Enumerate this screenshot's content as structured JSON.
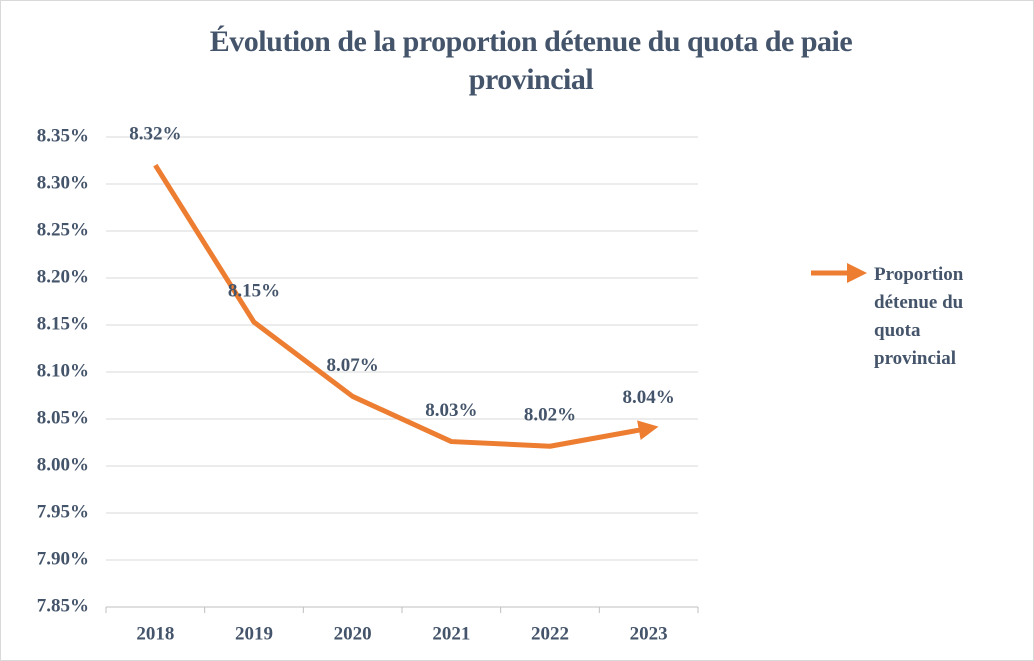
{
  "chart_data": {
    "type": "line",
    "title": "Évolution de la proportion détenue du quota de paie provincial",
    "categories": [
      "2018",
      "2019",
      "2020",
      "2021",
      "2022",
      "2023"
    ],
    "series": [
      {
        "name": "Proportion détenue du quota provincial",
        "color": "#ed7d31",
        "values": [
          8.32,
          8.153,
          8.074,
          8.026,
          8.021,
          8.04
        ],
        "value_labels": [
          "8.32%",
          "8.15%",
          "8.07%",
          "8.03%",
          "8.02%",
          "8.04%"
        ]
      }
    ],
    "ylim": [
      7.85,
      8.35
    ],
    "yticks": [
      {
        "value": 7.85,
        "label": "7.85%"
      },
      {
        "value": 7.9,
        "label": "7.90%"
      },
      {
        "value": 7.95,
        "label": "7.95%"
      },
      {
        "value": 8.0,
        "label": "8.00%"
      },
      {
        "value": 8.05,
        "label": "8.05%"
      },
      {
        "value": 8.1,
        "label": "8.10%"
      },
      {
        "value": 8.15,
        "label": "8.15%"
      },
      {
        "value": 8.2,
        "label": "8.20%"
      },
      {
        "value": 8.25,
        "label": "8.25%"
      },
      {
        "value": 8.3,
        "label": "8.30%"
      },
      {
        "value": 8.35,
        "label": "8.35%"
      }
    ],
    "grid": true,
    "legend": "right"
  }
}
